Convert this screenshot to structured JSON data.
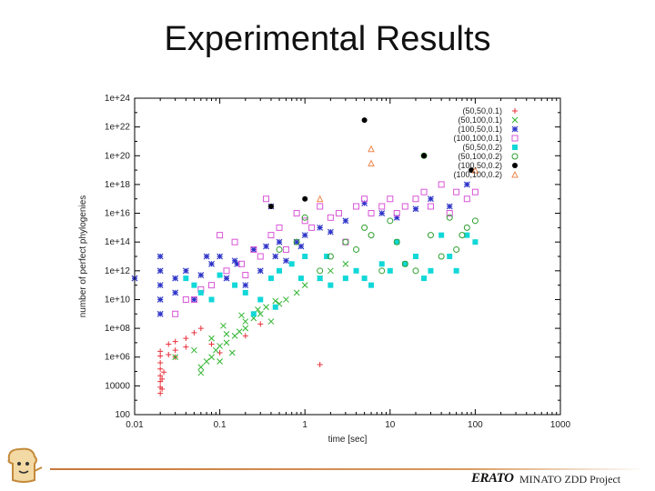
{
  "slide": {
    "title": "Experimental Results",
    "footer_text": "MINATO ZDD Project",
    "footer_logo": "ERATO",
    "mascot_icon": "bread-mascot-icon"
  },
  "chart_data": {
    "type": "scatter",
    "xlabel": "time [sec]",
    "ylabel": "number of perfect phylogenies",
    "x_scale": "log",
    "y_scale": "log",
    "xlim": [
      0.01,
      1000
    ],
    "ylim": [
      100,
      1e+24
    ],
    "x_ticks": [
      "0.01",
      "0.1",
      "1",
      "10",
      "100",
      "1000"
    ],
    "y_ticks": [
      "100",
      "10000",
      "1e+06",
      "1e+08",
      "1e+10",
      "1e+12",
      "1e+14",
      "1e+16",
      "1e+18",
      "1e+20",
      "1e+22",
      "1e+24"
    ],
    "grid": false,
    "legend_position": "top-right",
    "series": [
      {
        "name": "(50,50,0.1)",
        "marker": "plus",
        "color": "#e8323c",
        "points": [
          [
            0.02,
            3000
          ],
          [
            0.02,
            8000
          ],
          [
            0.02,
            20000
          ],
          [
            0.02,
            50000
          ],
          [
            0.02,
            150000
          ],
          [
            0.02,
            400000
          ],
          [
            0.02,
            1200000
          ],
          [
            0.021,
            6000
          ],
          [
            0.021,
            30000
          ],
          [
            0.022,
            90000
          ],
          [
            0.02,
            2500000
          ],
          [
            0.025,
            1500000
          ],
          [
            0.03,
            1000000
          ],
          [
            0.03,
            3000000
          ],
          [
            0.03,
            12000000
          ],
          [
            0.025,
            8000000
          ],
          [
            0.04,
            5000000
          ],
          [
            0.04,
            20000000
          ],
          [
            0.05,
            50000000
          ],
          [
            0.06,
            100000000
          ],
          [
            0.2,
            30000000
          ],
          [
            0.3,
            200000000
          ],
          [
            1.5,
            300000
          ],
          [
            0.1,
            2000000
          ],
          [
            0.08,
            8000000
          ]
        ]
      },
      {
        "name": "(50,100,0.1)",
        "marker": "x",
        "color": "#2fb52f",
        "points": [
          [
            0.06,
            80000
          ],
          [
            0.06,
            200000
          ],
          [
            0.07,
            500000
          ],
          [
            0.08,
            1000000
          ],
          [
            0.09,
            3000000
          ],
          [
            0.1,
            500000
          ],
          [
            0.1,
            6000000
          ],
          [
            0.12,
            10000000
          ],
          [
            0.12,
            40000000
          ],
          [
            0.14,
            2000000
          ],
          [
            0.15,
            30000000
          ],
          [
            0.17,
            60000000
          ],
          [
            0.2,
            100000000
          ],
          [
            0.2,
            300000000
          ],
          [
            0.25,
            500000000
          ],
          [
            0.3,
            1000000000
          ],
          [
            0.35,
            3000000000
          ],
          [
            0.4,
            300000000
          ],
          [
            0.5,
            5000000000
          ],
          [
            0.6,
            10000000000
          ],
          [
            0.8,
            30000000000
          ],
          [
            1,
            100000000000
          ],
          [
            1.5,
            300000000000
          ],
          [
            2,
            1000000000000
          ],
          [
            3,
            3000000000000
          ],
          [
            0.03,
            1000000
          ],
          [
            0.05,
            3000000
          ],
          [
            0.08,
            20000000
          ],
          [
            0.11,
            150000000
          ],
          [
            0.18,
            800000000
          ],
          [
            0.28,
            2000000000
          ],
          [
            0.45,
            8000000000
          ]
        ]
      },
      {
        "name": "(100,50,0.1)",
        "marker": "asterisk",
        "color": "#2f35c8",
        "points": [
          [
            0.01,
            300000000000.0
          ],
          [
            0.02,
            1000000000.0
          ],
          [
            0.02,
            10000000000.0
          ],
          [
            0.02,
            100000000000.0
          ],
          [
            0.02,
            1000000000000.0
          ],
          [
            0.02,
            10000000000000.0
          ],
          [
            0.03,
            30000000000.0
          ],
          [
            0.03,
            300000000000.0
          ],
          [
            0.04,
            1000000000000.0
          ],
          [
            0.05,
            10000000000.0
          ],
          [
            0.06,
            500000000000.0
          ],
          [
            0.08,
            3000000000000.0
          ],
          [
            0.1,
            10000000000000.0
          ],
          [
            0.12,
            300000000000.0
          ],
          [
            0.15,
            5000000000000.0
          ],
          [
            0.2,
            100000000000.0
          ],
          [
            0.25,
            30000000000000.0
          ],
          [
            0.3,
            1000000000000.0
          ],
          [
            0.35,
            50000000000000.0
          ],
          [
            0.4,
            3e+16
          ],
          [
            0.5,
            100000000000000.0
          ],
          [
            0.6,
            5000000000000.0
          ],
          [
            0.8,
            100000000000000.0
          ],
          [
            1,
            300000000000000.0
          ],
          [
            1.5,
            1000000000000000.0
          ],
          [
            2,
            500000000000000.0
          ],
          [
            3,
            3000000000000000.0
          ],
          [
            5,
            5e+16
          ],
          [
            8,
            1e+16
          ],
          [
            12,
            5000000000000000.0
          ],
          [
            20,
            2e+16
          ],
          [
            30,
            1e+17
          ],
          [
            50,
            3e+16
          ],
          [
            80,
            1e+18
          ],
          [
            0.07,
            10000000000000.0
          ],
          [
            0.16,
            3000000000000.0
          ],
          [
            0.45,
            10000000000000.0
          ],
          [
            0.9,
            50000000000000.0
          ]
        ]
      },
      {
        "name": "(100,100,0.1)",
        "marker": "square",
        "color": "#d855d8",
        "points": [
          [
            0.03,
            1000000000.0
          ],
          [
            0.05,
            10000000000.0
          ],
          [
            0.08,
            100000000000.0
          ],
          [
            0.1,
            300000000000000.0
          ],
          [
            0.12,
            1000000000000.0
          ],
          [
            0.15,
            100000000000000.0
          ],
          [
            0.2,
            500000000000.0
          ],
          [
            0.25,
            30000000000000.0
          ],
          [
            0.3,
            10000000000000.0
          ],
          [
            0.35,
            1e+17
          ],
          [
            0.4,
            300000000000000.0
          ],
          [
            0.5,
            1000000000000000.0
          ],
          [
            0.6,
            30000000000000.0
          ],
          [
            0.8,
            1e+16
          ],
          [
            1,
            3000000000000000.0
          ],
          [
            1.2,
            1000000000000000.0
          ],
          [
            1.5,
            3e+16
          ],
          [
            2,
            5000000000000000.0
          ],
          [
            2.5,
            1e+16
          ],
          [
            3,
            100000000000000.0
          ],
          [
            4,
            3e+16
          ],
          [
            5,
            1e+17
          ],
          [
            6,
            1e+16
          ],
          [
            8,
            3e+16
          ],
          [
            10,
            1e+17
          ],
          [
            12,
            1e+16
          ],
          [
            15,
            3e+16
          ],
          [
            20,
            1e+17
          ],
          [
            25,
            3e+17
          ],
          [
            30,
            3e+16
          ],
          [
            40,
            1e+18
          ],
          [
            50,
            1e+16
          ],
          [
            60,
            3e+17
          ],
          [
            80,
            1e+17
          ],
          [
            100,
            3e+17
          ],
          [
            0.04,
            10000000000.0
          ],
          [
            0.06,
            50000000000.0
          ],
          [
            0.18,
            3000000000000.0
          ]
        ]
      },
      {
        "name": "(50,50,0.2)",
        "marker": "filled-square",
        "color": "#12d8d8",
        "points": [
          [
            0.04,
            300000000000.0
          ],
          [
            0.05,
            100000000000.0
          ],
          [
            0.06,
            30000000000.0
          ],
          [
            0.08,
            10000000000.0
          ],
          [
            0.1,
            500000000000.0
          ],
          [
            0.15,
            100000000000.0
          ],
          [
            0.2,
            30000000000.0
          ],
          [
            0.3,
            10000000000.0
          ],
          [
            0.4,
            300000000000.0
          ],
          [
            0.5,
            1000000000000.0
          ],
          [
            0.7,
            3000000000000.0
          ],
          [
            1,
            10000000000000.0
          ],
          [
            1.5,
            300000000000.0
          ],
          [
            2,
            100000000000.0
          ],
          [
            3,
            300000000000.0
          ],
          [
            4,
            1000000000000.0
          ],
          [
            5,
            300000000000.0
          ],
          [
            6,
            100000000000.0
          ],
          [
            8,
            3000000000000.0
          ],
          [
            10,
            1000000000000.0
          ],
          [
            12,
            100000000000000.0
          ],
          [
            15,
            3000000000000.0
          ],
          [
            20,
            10000000000000.0
          ],
          [
            25,
            300000000000.0
          ],
          [
            30,
            1000000000000.0
          ],
          [
            40,
            300000000000000.0
          ],
          [
            50,
            10000000000000.0
          ],
          [
            60,
            1000000000000.0
          ],
          [
            80,
            300000000000000.0
          ],
          [
            100,
            100000000000000.0
          ],
          [
            0.25,
            1000000000.0
          ],
          [
            0.45,
            3000000000.0
          ],
          [
            0.9,
            300000000000.0
          ],
          [
            1.8,
            10000000000000.0
          ]
        ]
      },
      {
        "name": "(50,100,0.2)",
        "marker": "circle",
        "color": "#2e9e2e",
        "points": [
          [
            0.5,
            30000000000000.0
          ],
          [
            0.8,
            100000000000000.0
          ],
          [
            1,
            5000000000000000.0
          ],
          [
            1.5,
            1000000000000.0
          ],
          [
            2,
            10000000000000.0
          ],
          [
            3,
            100000000000000.0
          ],
          [
            4,
            30000000000000.0
          ],
          [
            5,
            1000000000000000.0
          ],
          [
            6,
            300000000000000.0
          ],
          [
            8,
            1000000000000.0
          ],
          [
            10,
            3000000000000000.0
          ],
          [
            12,
            100000000000000.0
          ],
          [
            15,
            3000000000000.0
          ],
          [
            20,
            1000000000000.0
          ],
          [
            25,
            1e+20
          ],
          [
            30,
            300000000000000.0
          ],
          [
            40,
            10000000000000.0
          ],
          [
            50,
            5000000000000000.0
          ],
          [
            60,
            30000000000000.0
          ],
          [
            70,
            300000000000000.0
          ],
          [
            80,
            1000000000000000.0
          ],
          [
            100,
            3000000000000000.0
          ]
        ]
      },
      {
        "name": "(100,50,0.2)",
        "marker": "filled-circle",
        "color": "#000000",
        "points": [
          [
            0.4,
            3e+16
          ],
          [
            1,
            1e+17
          ],
          [
            5,
            3e+22
          ],
          [
            25,
            1e+20
          ],
          [
            90,
            1e+19
          ]
        ]
      },
      {
        "name": "(100,100,0.2)",
        "marker": "triangle",
        "color": "#f2884e",
        "points": [
          [
            1.5,
            1e+17
          ],
          [
            6,
            3e+20
          ],
          [
            6,
            3e+19
          ],
          [
            100,
            1e+19
          ]
        ]
      }
    ]
  }
}
